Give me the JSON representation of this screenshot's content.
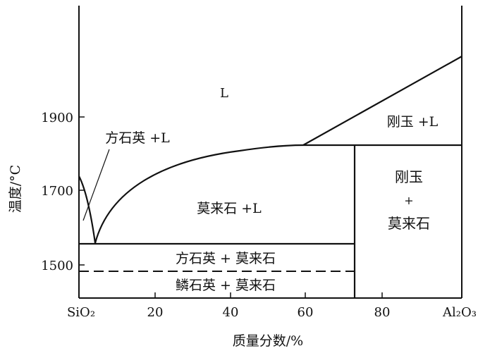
{
  "diagram": {
    "xlabel": "质量分数/%",
    "ylabel": "温度/°C",
    "x_ticks": [
      "SiO₂",
      "20",
      "40",
      "60",
      "80",
      "Al₂O₃"
    ],
    "y_ticks": [
      "1900",
      "1700",
      "1500"
    ],
    "regions": {
      "liquid": "L",
      "cristobalite_liquid": "方石英 +L",
      "mullite_liquid": "莫来石 +L",
      "corundum_liquid": "刚玉 +L",
      "corundum_mullite": [
        "刚玉",
        "+",
        "莫来石"
      ],
      "cristobalite_mullite": "方石英 + 莫来石",
      "tridymite_mullite": "鳞石英 + 莫来石"
    }
  }
}
